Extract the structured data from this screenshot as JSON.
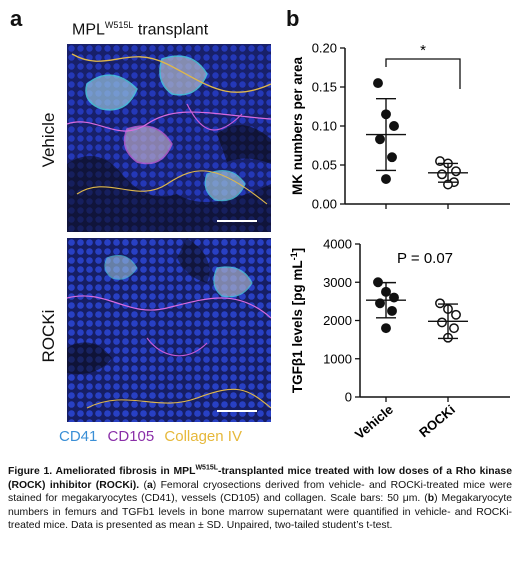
{
  "figure": {
    "panel_a_label": "a",
    "panel_b_label": "b",
    "transplant_title_pre": "MPL",
    "transplant_title_sup": "W515L",
    "transplant_title_post": " transplant",
    "row_labels": [
      "Vehicle",
      "ROCKi"
    ],
    "stain_legend": [
      {
        "text": "CD41",
        "color": "#3a8fd6"
      },
      {
        "text": "CD105",
        "color": "#8a2fa8"
      },
      {
        "text": "Collagen IV",
        "color": "#e6b83a"
      }
    ],
    "caption": {
      "title_pre": "Figure 1. Ameliorated fibrosis in MPL",
      "title_sup": "W515L",
      "title_post": "-transplanted mice treated with low doses of a Rho kinase (ROCK) inhibitor (ROCKi).",
      "part_a_label": "a",
      "part_a_text": " Femoral cryosections derived from vehicle- and ROCKi-treated mice were stained for  megakaryocytes (CD41), vessels (CD105) and collagen. Scale bars: 50 μm. (",
      "part_b_label": "b",
      "part_b_text": ") Megakaryocyte numbers in femurs and TGFb1 levels in bone marrow supernatant were quantified in vehicle- and ROCKi-treated mice. Data is presented as mean ± SD. Unpaired, two-tailed student’s t-test."
    }
  },
  "chart_data": [
    {
      "type": "scatter",
      "ylabel": "MK numbers per area",
      "ylim": [
        0,
        0.2
      ],
      "yticks": [
        "0.00",
        "0.05",
        "0.10",
        "0.15",
        "0.20"
      ],
      "categories": [
        "Vehicle",
        "ROCKi"
      ],
      "groups": [
        {
          "name": "Vehicle",
          "values": [
            0.155,
            0.115,
            0.1,
            0.083,
            0.06,
            0.032
          ],
          "mean": 0.089,
          "sd": 0.046,
          "marker": "filled"
        },
        {
          "name": "ROCKi",
          "values": [
            0.055,
            0.052,
            0.042,
            0.038,
            0.028,
            0.025
          ],
          "mean": 0.04,
          "sd": 0.012,
          "marker": "open"
        }
      ],
      "annotation": "*"
    },
    {
      "type": "scatter",
      "ylabel": "TGFβ1 levels [pg mL",
      "ylabel_sup": "-1",
      "ylabel_close": "]",
      "ylim": [
        0,
        4000
      ],
      "yticks": [
        "0",
        "1000",
        "2000",
        "3000",
        "4000"
      ],
      "categories": [
        "Vehicle",
        "ROCKi"
      ],
      "groups": [
        {
          "name": "Vehicle",
          "values": [
            3000,
            2750,
            2600,
            2450,
            2250,
            1800
          ],
          "mean": 2530,
          "sd": 460,
          "marker": "filled"
        },
        {
          "name": "ROCKi",
          "values": [
            2450,
            2300,
            2150,
            1950,
            1800,
            1550
          ],
          "mean": 1980,
          "sd": 450,
          "marker": "open"
        }
      ],
      "annotation": "P = 0.07"
    }
  ]
}
